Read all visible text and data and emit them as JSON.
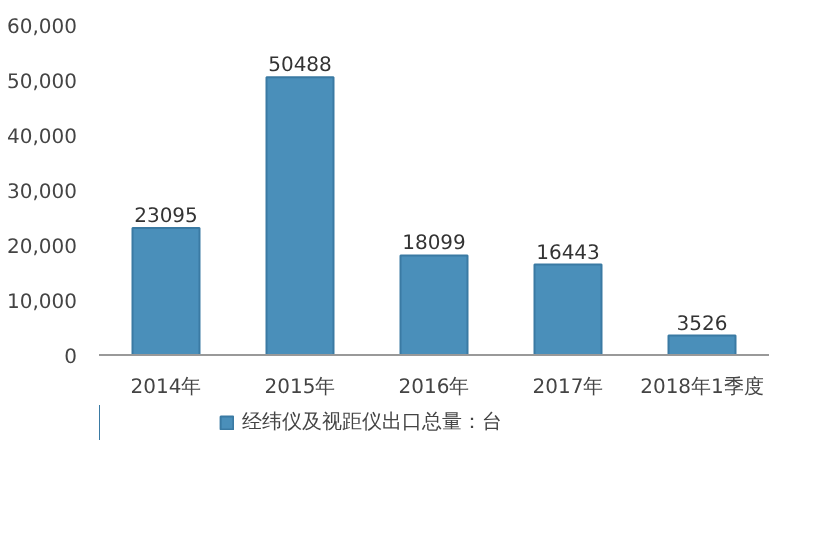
{
  "chart_data": {
    "type": "bar",
    "categories": [
      "2014年",
      "2015年",
      "2016年",
      "2017年",
      "2018年1季度"
    ],
    "series": [
      {
        "name": "经纬仪及视距仪出口总量：台",
        "color": "#4a8fba",
        "values": [
          23095,
          50488,
          18099,
          16443,
          3526
        ]
      }
    ],
    "ylim": [
      0,
      60000
    ],
    "yticks": [
      {
        "value": 0,
        "label": "0"
      },
      {
        "value": 10000,
        "label": "10,000"
      },
      {
        "value": 20000,
        "label": "20,000"
      },
      {
        "value": 30000,
        "label": "30,000"
      },
      {
        "value": 40000,
        "label": "40,000"
      },
      {
        "value": 50000,
        "label": "50,000"
      },
      {
        "value": 60000,
        "label": "60,000"
      }
    ],
    "data_labels": true,
    "legend": "bottom",
    "grid": false
  }
}
